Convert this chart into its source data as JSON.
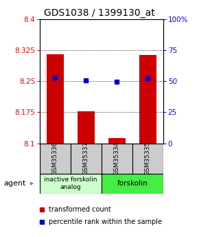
{
  "title": "GDS1038 / 1399130_at",
  "samples": [
    "GSM35336",
    "GSM35337",
    "GSM35334",
    "GSM35335"
  ],
  "bar_values": [
    8.315,
    8.178,
    8.113,
    8.313
  ],
  "percentile_values": [
    8.258,
    8.252,
    8.248,
    8.257
  ],
  "ylim_left": [
    8.1,
    8.4
  ],
  "yticks_left": [
    8.1,
    8.175,
    8.25,
    8.325,
    8.4
  ],
  "ytick_labels_left": [
    "8.1",
    "8.175",
    "8.25",
    "8.325",
    "8.4"
  ],
  "yticks_right": [
    0,
    25,
    50,
    75,
    100
  ],
  "ytick_labels_right": [
    "0",
    "25",
    "50",
    "75",
    "100%"
  ],
  "bar_color": "#cc0000",
  "percentile_color": "#0000cc",
  "bar_base": 8.1,
  "grid_lines": [
    8.175,
    8.25,
    8.325
  ],
  "group1_label": "inactive forskolin\nanalog",
  "group2_label": "forskolin",
  "group1_color": "#ccffcc",
  "group2_color": "#44ee44",
  "agent_label": "agent",
  "legend_bar_label": "transformed count",
  "legend_pct_label": "percentile rank within the sample",
  "background_color": "#ffffff",
  "sample_box_color": "#cccccc",
  "title_fontsize": 10,
  "tick_fontsize": 7.5,
  "bar_width": 0.55
}
